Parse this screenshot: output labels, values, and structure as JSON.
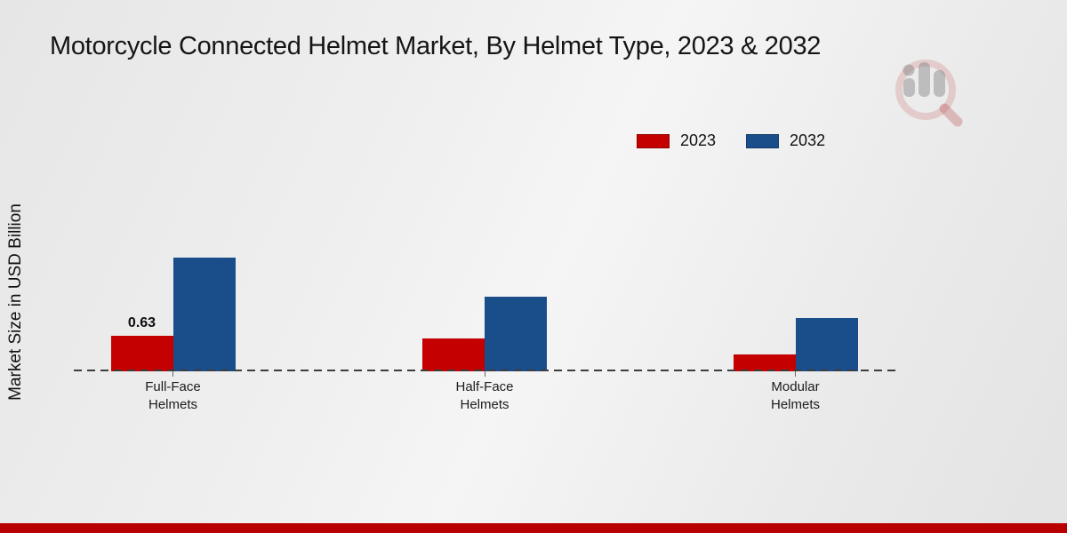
{
  "chart_data": {
    "type": "bar",
    "title": "Motorcycle Connected Helmet Market, By Helmet Type, 2023 & 2032",
    "ylabel": "Market Size in USD Billion",
    "xlabel": "",
    "categories": [
      "Full-Face Helmets",
      "Half-Face Helmets",
      "Modular Helmets"
    ],
    "series": [
      {
        "name": "2023",
        "color": "#c40000",
        "values": [
          0.63,
          0.58,
          0.3
        ],
        "bar_labels": [
          "0.63",
          "",
          ""
        ]
      },
      {
        "name": "2032",
        "color": "#1a4e8a",
        "values": [
          2.0,
          1.32,
          0.93
        ],
        "bar_labels": [
          "",
          "",
          ""
        ]
      }
    ],
    "ylim": [
      0,
      2.2
    ],
    "grid": false,
    "legend_position": "top-right",
    "baseline_style": "dashed"
  },
  "branding": {
    "footer_bar_color": "#b80000",
    "watermark_icon": "magnifier-bar-chart-logo"
  }
}
